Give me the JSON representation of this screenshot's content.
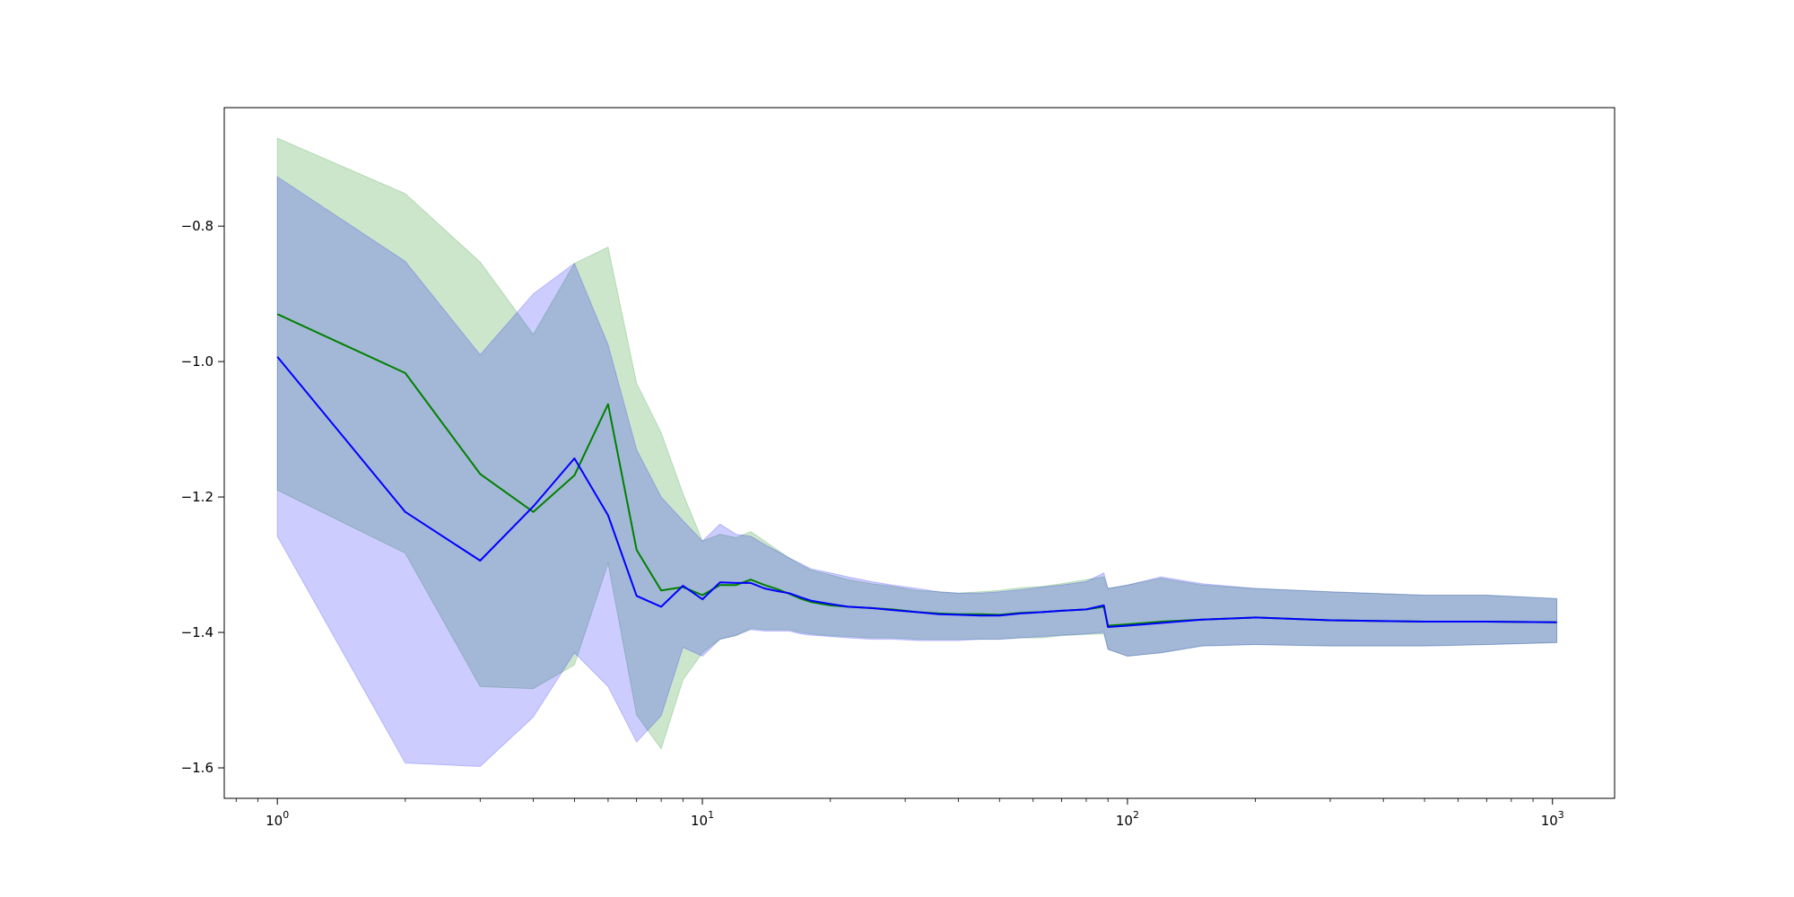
{
  "chart_data": {
    "type": "line",
    "title": "",
    "xlabel": "",
    "ylabel": "",
    "xscale": "log",
    "xlim": [
      0.75,
      1400
    ],
    "ylim": [
      -1.645,
      -0.625
    ],
    "grid": false,
    "x_ticks": [
      {
        "value": 1,
        "base": "10",
        "exp": "0"
      },
      {
        "value": 10,
        "base": "10",
        "exp": "1"
      },
      {
        "value": 100,
        "base": "10",
        "exp": "2"
      },
      {
        "value": 1000,
        "base": "10",
        "exp": "3"
      }
    ],
    "y_ticks": [
      {
        "value": -0.8,
        "label": "−0.8"
      },
      {
        "value": -1.0,
        "label": "−1.0"
      },
      {
        "value": -1.2,
        "label": "−1.2"
      },
      {
        "value": -1.4,
        "label": "−1.4"
      },
      {
        "value": -1.6,
        "label": "−1.6"
      }
    ],
    "series": [
      {
        "color": "#008000",
        "band_color": "#008000",
        "band_opacity": 0.2,
        "x": [
          1,
          2,
          3,
          4,
          5,
          6,
          7,
          8,
          9,
          10,
          11,
          12,
          13,
          14,
          15,
          16,
          17,
          18,
          20,
          22,
          25,
          28,
          32,
          36,
          40,
          45,
          50,
          56,
          63,
          70,
          80,
          88,
          90,
          100,
          120,
          150,
          200,
          300,
          500,
          700,
          1024
        ],
        "mean": [
          -0.93,
          -1.017,
          -1.166,
          -1.222,
          -1.168,
          -1.063,
          -1.278,
          -1.338,
          -1.333,
          -1.345,
          -1.33,
          -1.33,
          -1.322,
          -1.33,
          -1.336,
          -1.343,
          -1.35,
          -1.355,
          -1.36,
          -1.362,
          -1.364,
          -1.366,
          -1.37,
          -1.372,
          -1.373,
          -1.373,
          -1.374,
          -1.371,
          -1.37,
          -1.368,
          -1.366,
          -1.362,
          -1.39,
          -1.388,
          -1.384,
          -1.381,
          -1.378,
          -1.382,
          -1.384,
          -1.384,
          -1.385
        ],
        "upper": [
          -0.67,
          -0.752,
          -0.853,
          -0.96,
          -0.855,
          -0.831,
          -1.032,
          -1.105,
          -1.195,
          -1.265,
          -1.255,
          -1.26,
          -1.251,
          -1.265,
          -1.278,
          -1.29,
          -1.3,
          -1.308,
          -1.315,
          -1.322,
          -1.328,
          -1.332,
          -1.338,
          -1.34,
          -1.342,
          -1.34,
          -1.338,
          -1.334,
          -1.332,
          -1.328,
          -1.322,
          -1.318,
          -1.335,
          -1.33,
          -1.32,
          -1.33,
          -1.335,
          -1.34,
          -1.345,
          -1.345,
          -1.35
        ],
        "lower": [
          -1.19,
          -1.283,
          -1.48,
          -1.483,
          -1.448,
          -1.298,
          -1.522,
          -1.572,
          -1.47,
          -1.43,
          -1.41,
          -1.405,
          -1.394,
          -1.396,
          -1.396,
          -1.396,
          -1.4,
          -1.402,
          -1.405,
          -1.406,
          -1.408,
          -1.408,
          -1.41,
          -1.41,
          -1.41,
          -1.41,
          -1.41,
          -1.408,
          -1.408,
          -1.405,
          -1.403,
          -1.402,
          -1.425,
          -1.435,
          -1.43,
          -1.42,
          -1.418,
          -1.42,
          -1.42,
          -1.418,
          -1.415
        ]
      },
      {
        "color": "#0000ff",
        "band_color": "#0000ff",
        "band_opacity": 0.2,
        "x": [
          1,
          2,
          3,
          4,
          5,
          6,
          7,
          8,
          9,
          10,
          11,
          12,
          13,
          14,
          15,
          16,
          17,
          18,
          20,
          22,
          25,
          28,
          32,
          36,
          40,
          45,
          50,
          56,
          63,
          70,
          80,
          88,
          90,
          100,
          120,
          150,
          200,
          300,
          500,
          700,
          1024
        ],
        "mean": [
          -0.993,
          -1.222,
          -1.294,
          -1.214,
          -1.143,
          -1.227,
          -1.346,
          -1.362,
          -1.331,
          -1.351,
          -1.326,
          -1.327,
          -1.327,
          -1.335,
          -1.339,
          -1.342,
          -1.348,
          -1.353,
          -1.358,
          -1.362,
          -1.364,
          -1.367,
          -1.37,
          -1.373,
          -1.374,
          -1.375,
          -1.375,
          -1.372,
          -1.37,
          -1.368,
          -1.366,
          -1.36,
          -1.392,
          -1.39,
          -1.386,
          -1.381,
          -1.378,
          -1.382,
          -1.384,
          -1.384,
          -1.385
        ],
        "upper": [
          -0.727,
          -0.852,
          -0.99,
          -0.9,
          -0.855,
          -0.975,
          -1.13,
          -1.2,
          -1.235,
          -1.265,
          -1.24,
          -1.255,
          -1.258,
          -1.27,
          -1.28,
          -1.29,
          -1.298,
          -1.306,
          -1.312,
          -1.318,
          -1.325,
          -1.33,
          -1.335,
          -1.34,
          -1.342,
          -1.342,
          -1.34,
          -1.337,
          -1.333,
          -1.33,
          -1.325,
          -1.312,
          -1.335,
          -1.33,
          -1.318,
          -1.328,
          -1.335,
          -1.34,
          -1.345,
          -1.345,
          -1.35
        ],
        "lower": [
          -1.258,
          -1.593,
          -1.598,
          -1.525,
          -1.43,
          -1.48,
          -1.562,
          -1.523,
          -1.422,
          -1.435,
          -1.41,
          -1.404,
          -1.396,
          -1.398,
          -1.398,
          -1.398,
          -1.402,
          -1.404,
          -1.406,
          -1.408,
          -1.41,
          -1.41,
          -1.412,
          -1.412,
          -1.412,
          -1.41,
          -1.41,
          -1.408,
          -1.406,
          -1.404,
          -1.402,
          -1.4,
          -1.425,
          -1.435,
          -1.43,
          -1.42,
          -1.418,
          -1.42,
          -1.42,
          -1.418,
          -1.415
        ]
      }
    ]
  }
}
